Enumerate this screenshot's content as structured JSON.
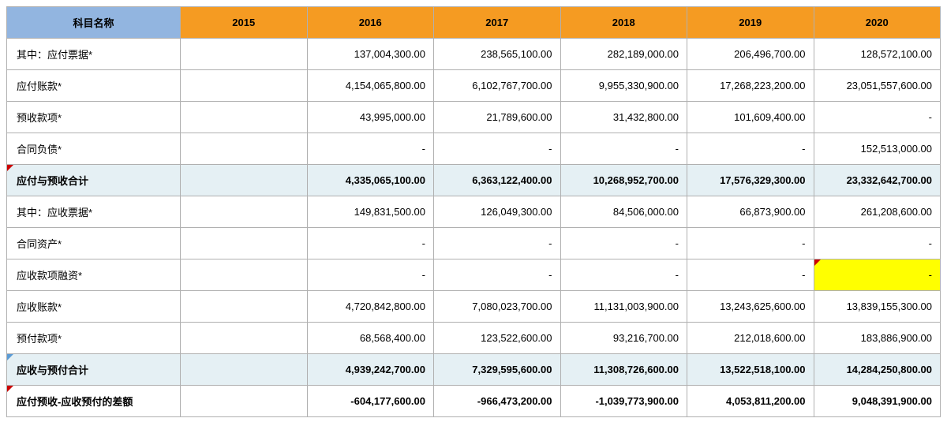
{
  "table": {
    "label_header": "科目名称",
    "years": [
      "2015",
      "2016",
      "2017",
      "2018",
      "2019",
      "2020"
    ],
    "colors": {
      "label_header_bg": "#92b5e0",
      "year_header_bg": "#f59b22",
      "subtotal_bg": "#e5f0f4",
      "highlight_bg": "#ffff00",
      "border": "#b0b0b0",
      "marker_red": "#cc0000",
      "marker_blue": "#5b9bd5"
    },
    "rows": [
      {
        "label": "其中：应付票据*",
        "cells": [
          "",
          "137,004,300.00",
          "238,565,100.00",
          "282,189,000.00",
          "206,496,700.00",
          "128,572,100.00"
        ],
        "type": "normal"
      },
      {
        "label": "应付账款*",
        "cells": [
          "",
          "4,154,065,800.00",
          "6,102,767,700.00",
          "9,955,330,900.00",
          "17,268,223,200.00",
          "23,051,557,600.00"
        ],
        "type": "normal"
      },
      {
        "label": "预收款项*",
        "cells": [
          "",
          "43,995,000.00",
          "21,789,600.00",
          "31,432,800.00",
          "101,609,400.00",
          "-"
        ],
        "type": "normal"
      },
      {
        "label": "合同负债*",
        "cells": [
          "",
          "-",
          "-",
          "-",
          "-",
          "152,513,000.00"
        ],
        "type": "normal"
      },
      {
        "label": "应付与预收合计",
        "cells": [
          "",
          "4,335,065,100.00",
          "6,363,122,400.00",
          "10,268,952,700.00",
          "17,576,329,300.00",
          "23,332,642,700.00"
        ],
        "type": "subtotal",
        "label_marker": "red"
      },
      {
        "label": "其中：应收票据*",
        "cells": [
          "",
          "149,831,500.00",
          "126,049,300.00",
          "84,506,000.00",
          "66,873,900.00",
          "261,208,600.00"
        ],
        "type": "normal"
      },
      {
        "label": "合同资产*",
        "cells": [
          "",
          "-",
          "-",
          "-",
          "-",
          "-"
        ],
        "type": "normal"
      },
      {
        "label": "应收款项融资*",
        "cells": [
          "",
          "-",
          "-",
          "-",
          "-",
          "-"
        ],
        "type": "normal",
        "highlight_index": 5
      },
      {
        "label": "应收账款*",
        "cells": [
          "",
          "4,720,842,800.00",
          "7,080,023,700.00",
          "11,131,003,900.00",
          "13,243,625,600.00",
          "13,839,155,300.00"
        ],
        "type": "normal"
      },
      {
        "label": "预付款项*",
        "cells": [
          "",
          "68,568,400.00",
          "123,522,600.00",
          "93,216,700.00",
          "212,018,600.00",
          "183,886,900.00"
        ],
        "type": "normal"
      },
      {
        "label": "应收与预付合计",
        "cells": [
          "",
          "4,939,242,700.00",
          "7,329,595,600.00",
          "11,308,726,600.00",
          "13,522,518,100.00",
          "14,284,250,800.00"
        ],
        "type": "subtotal",
        "label_marker": "blue"
      },
      {
        "label": "应付预收-应收预付的差额",
        "cells": [
          "",
          "-604,177,600.00",
          "-966,473,200.00",
          "-1,039,773,900.00",
          "4,053,811,200.00",
          "9,048,391,900.00"
        ],
        "type": "diff",
        "label_marker": "red"
      }
    ]
  }
}
